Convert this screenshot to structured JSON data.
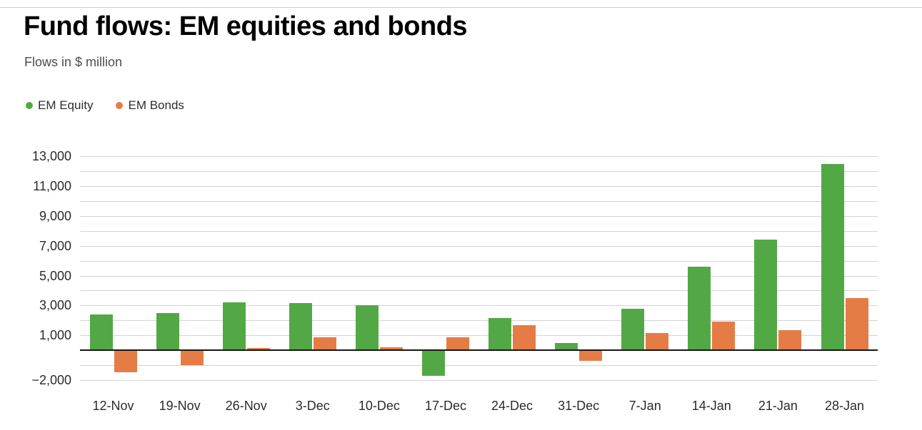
{
  "header": {
    "title": "Fund flows: EM equities and bonds",
    "subtitle": "Flows in $ million"
  },
  "legend": {
    "items": [
      {
        "label": "EM Equity",
        "color": "#53a846"
      },
      {
        "label": "EM Bonds",
        "color": "#e67c45"
      }
    ]
  },
  "chart_data": {
    "type": "bar",
    "title": "Fund flows: EM equities and bonds",
    "subtitle": "Flows in $ million",
    "unit": "$ million",
    "categories": [
      "12-Nov",
      "19-Nov",
      "26-Nov",
      "3-Dec",
      "10-Dec",
      "17-Dec",
      "24-Dec",
      "31-Dec",
      "7-Jan",
      "14-Jan",
      "21-Jan",
      "28-Jan"
    ],
    "series": [
      {
        "name": "EM Equity",
        "color": "#53a846",
        "values": [
          2400,
          2500,
          3200,
          3150,
          3000,
          -1700,
          2150,
          500,
          2800,
          5600,
          7400,
          12500
        ]
      },
      {
        "name": "EM Bonds",
        "color": "#e67c45",
        "values": [
          -1500,
          -1000,
          150,
          880,
          200,
          850,
          1700,
          -700,
          1150,
          1900,
          1350,
          3500
        ]
      }
    ],
    "ylim": [
      -2000,
      13000
    ],
    "gridline_step": 1000,
    "y_ticks": [
      {
        "value": 13000,
        "label": "13,000"
      },
      {
        "value": 11000,
        "label": "11,000"
      },
      {
        "value": 9000,
        "label": "9,000"
      },
      {
        "value": 7000,
        "label": "7,000"
      },
      {
        "value": 5000,
        "label": "5,000"
      },
      {
        "value": 3000,
        "label": "3,000"
      },
      {
        "value": 1000,
        "label": "1,000"
      },
      {
        "value": -2000,
        "label": "−2,000"
      }
    ],
    "grid": true,
    "legend_position": "top-left",
    "axis_color": "#161616",
    "gridline_color": "#d4d4d4"
  }
}
